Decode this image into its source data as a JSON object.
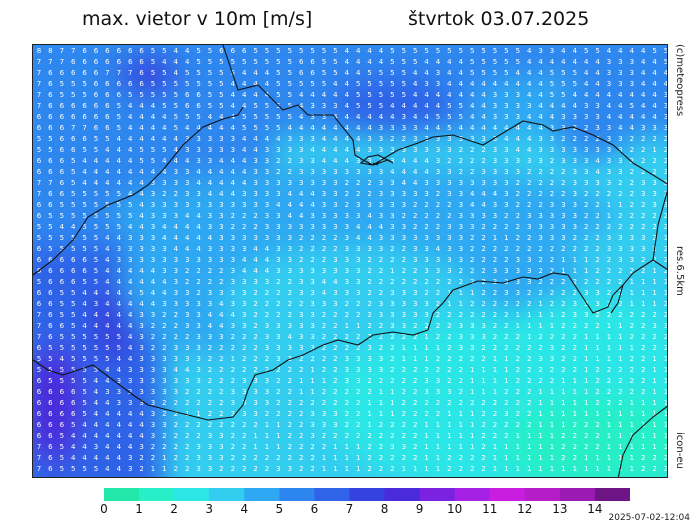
{
  "header": {
    "title": "max. vietor v 10m [m/s]",
    "date": "štvrtok 03.07.2025"
  },
  "side_labels": {
    "copyright": "(c)meteopress",
    "resolution": "res.6.5km",
    "model": "icon-eu"
  },
  "legend": {
    "values": [
      "0",
      "1",
      "2",
      "3",
      "4",
      "5",
      "6",
      "7",
      "8",
      "9",
      "10",
      "11",
      "12",
      "13",
      "14"
    ],
    "colors": [
      "#22e7a8",
      "#27efc8",
      "#2ce6e6",
      "#33cdf0",
      "#2ea8f2",
      "#2d86ef",
      "#2f63e8",
      "#3442df",
      "#4a2bdc",
      "#7a22e0",
      "#a521e3",
      "#c91ee0",
      "#b41dc8",
      "#9b1ab4",
      "#6e1585"
    ]
  },
  "map": {
    "description_values": "wind speed digits per grid cell",
    "regions": {
      "west_values": [
        5,
        6,
        7,
        8
      ],
      "center_values": [
        3,
        4
      ],
      "southeast_values": [
        1,
        2
      ]
    }
  },
  "footer": {
    "timestamp": "2025-07-02-12:04"
  }
}
